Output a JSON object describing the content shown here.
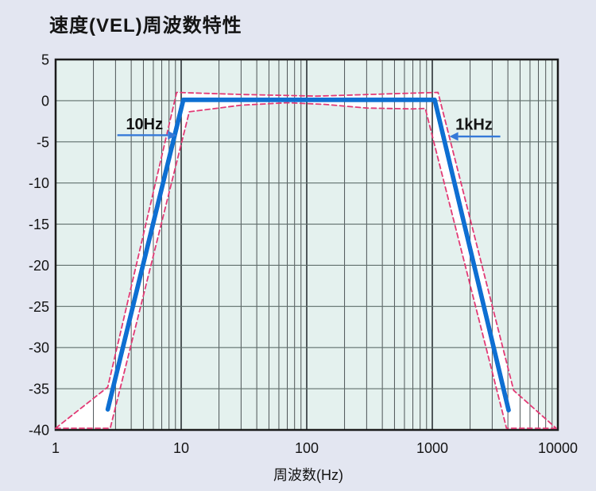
{
  "title": "速度(VEL)周波数特性",
  "colors": {
    "page_bg": "#e3e6f1",
    "plot_bg": "#e4f1ee",
    "tolerance_band_fill": "#ffffff",
    "grid_minor": "#4d5456",
    "grid_major": "#2b3134",
    "grid_horizontal": "#5f6f6c",
    "plot_border": "#1b1b1b",
    "curve_blue": "#0e6fd2",
    "tolerance_pink": "#e23a75",
    "arrow_blue": "#3579d8",
    "text": "#141414"
  },
  "chart_data": {
    "type": "line",
    "title": "速度(VEL)周波数特性",
    "xlabel": "周波数(Hz)",
    "ylabel": "",
    "x_scale": "log",
    "xlim": [
      1,
      10000
    ],
    "ylim": [
      -40,
      5
    ],
    "x_ticks": [
      1,
      10,
      100,
      1000,
      10000
    ],
    "x_tick_labels": [
      "1",
      "10",
      "100",
      "1000",
      "10000"
    ],
    "y_ticks": [
      5,
      0,
      -5,
      -10,
      -15,
      -20,
      -25,
      -30,
      -35,
      -40
    ],
    "grid": "vertical log minor+major lines, horizontal major lines every 5 dB",
    "legend": "none",
    "series": [
      {
        "name": "velocity-response",
        "style": "solid",
        "color_key": "curve_blue",
        "width": 5.5,
        "points": [
          [
            2.6,
            -37.5
          ],
          [
            10.4,
            0.1
          ],
          [
            1045,
            0.1
          ],
          [
            4050,
            -37.6
          ]
        ]
      },
      {
        "name": "tolerance-upper",
        "style": "dashed",
        "color_key": "tolerance_pink",
        "width": 1.8,
        "points": [
          [
            1,
            -39.8
          ],
          [
            2.6,
            -34.8
          ],
          [
            9.2,
            1.0
          ],
          [
            30,
            0.75
          ],
          [
            120,
            0.55
          ],
          [
            500,
            0.85
          ],
          [
            1110,
            1.0
          ],
          [
            4450,
            -35.2
          ],
          [
            9700,
            -39.8
          ]
        ]
      },
      {
        "name": "tolerance-lower",
        "style": "dashed",
        "color_key": "tolerance_pink",
        "width": 1.8,
        "points": [
          [
            1,
            -39.8
          ],
          [
            2.72,
            -39.8
          ],
          [
            11.6,
            -1.35
          ],
          [
            30,
            -0.55
          ],
          [
            70,
            -0.25
          ],
          [
            140,
            -0.45
          ],
          [
            300,
            -0.9
          ],
          [
            700,
            -1.0
          ],
          [
            880,
            -0.95
          ],
          [
            3900,
            -39.8
          ],
          [
            9700,
            -39.8
          ]
        ]
      }
    ],
    "annotations": [
      {
        "label": "10Hz",
        "tip_f": 9.2,
        "tip_db": -4.2,
        "tail_f": 3.1,
        "text_f": 5.1,
        "text_db": -3.5,
        "direction": "right"
      },
      {
        "label": "1kHz",
        "tip_f": 1370,
        "tip_db": -4.35,
        "tail_f": 3480,
        "text_f": 2150,
        "text_db": -3.55,
        "direction": "left"
      }
    ]
  }
}
